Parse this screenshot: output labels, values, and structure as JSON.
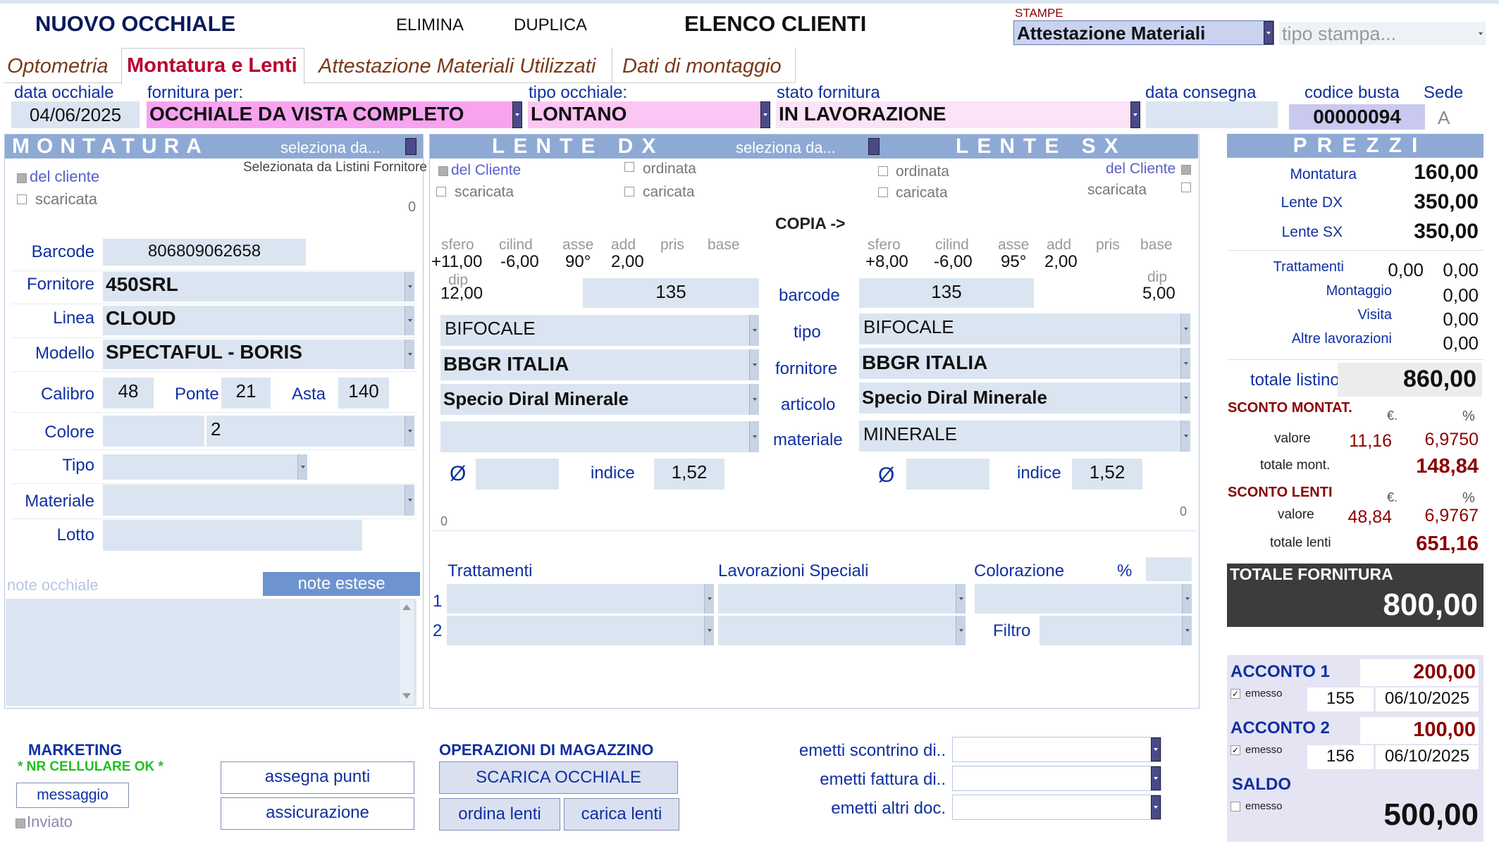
{
  "header": {
    "title": "NUOVO OCCHIALE",
    "elimina": "ELIMINA",
    "duplica": "DUPLICA",
    "elenco": "ELENCO CLIENTI",
    "stampe_label": "STAMPE",
    "stampe_value": "Attestazione Materiali",
    "tipo_stampa_placeholder": "tipo stampa..."
  },
  "tabs": [
    {
      "label": "Optometria"
    },
    {
      "label": "Montatura e Lenti"
    },
    {
      "label": "Attestazione Materiali Utilizzati"
    },
    {
      "label": "Dati di montaggio"
    }
  ],
  "info": {
    "data_occhiale_label": "data occhiale",
    "data_occhiale": "04/06/2025",
    "fornitura_label": "fornitura per:",
    "fornitura": "OCCHIALE DA VISTA COMPLETO",
    "tipo_label": "tipo occhiale:",
    "tipo": "LONTANO",
    "stato_label": "stato fornitura",
    "stato": "IN LAVORAZIONE",
    "consegna_label": "data consegna",
    "busta_label": "codice busta",
    "busta": "00000094",
    "sede_label": "Sede",
    "sede": "A"
  },
  "montatura": {
    "title": "MONTATURA",
    "seleziona": "seleziona da...",
    "del_cliente": "del cliente",
    "scaricata": "scaricata",
    "selezionata": "Selezionata da Listini Fornitore",
    "zero": "0",
    "barcode_label": "Barcode",
    "barcode": "806809062658",
    "fornitore_label": "Fornitore",
    "fornitore": "450SRL",
    "linea_label": "Linea",
    "linea": "CLOUD",
    "modello_label": "Modello",
    "modello": "SPECTAFUL - BORIS",
    "calibro_label": "Calibro",
    "calibro": "48",
    "ponte_label": "Ponte",
    "ponte": "21",
    "asta_label": "Asta",
    "asta": "140",
    "colore_label": "Colore",
    "colore": "2",
    "tipo_label": "Tipo",
    "materiale_label": "Materiale",
    "lotto_label": "Lotto",
    "note_placeholder": "note occhiale",
    "note_estese": "note estese"
  },
  "lenti": {
    "dx_title": "LENTE DX",
    "sx_title": "LENTE SX",
    "seleziona": "seleziona da...",
    "del_cliente": "del Cliente",
    "scaricata": "scaricata",
    "ordinata": "ordinata",
    "caricata": "caricata",
    "copia": "COPIA ->",
    "col_sfero": "sfero",
    "col_cilind": "cilind",
    "col_asse": "asse",
    "col_add": "add",
    "col_pris": "pris",
    "col_base": "base",
    "col_dip": "dip",
    "dx": {
      "sfero": "+11,00",
      "cilind": "-6,00",
      "asse": "90°",
      "add": "2,00",
      "dip": "12,00",
      "barcode": "135",
      "tipo": "BIFOCALE",
      "fornitore": "BBGR ITALIA",
      "articolo": "Specio Diral Minerale",
      "materiale": "",
      "indice": "1,52",
      "zero": "0"
    },
    "sx": {
      "sfero": "+8,00",
      "cilind": "-6,00",
      "asse": "95°",
      "add": "2,00",
      "dip": "5,00",
      "barcode": "135",
      "tipo": "BIFOCALE",
      "fornitore": "BBGR ITALIA",
      "articolo": "Specio Diral Minerale",
      "materiale": "MINERALE",
      "indice": "1,52",
      "zero": "0"
    },
    "mid_barcode": "barcode",
    "mid_tipo": "tipo",
    "mid_fornitore": "fornitore",
    "mid_articolo": "articolo",
    "mid_materiale": "materiale",
    "diam": "Ø",
    "indice_label": "indice",
    "trattamenti": "Trattamenti",
    "lavorazioni": "Lavorazioni Speciali",
    "colorazione": "Colorazione",
    "perc": "%",
    "row1": "1",
    "row2": "2",
    "filtro": "Filtro"
  },
  "prezzi": {
    "title": "PREZZI",
    "montatura_label": "Montatura",
    "montatura": "160,00",
    "lente_dx_label": "Lente DX",
    "lente_dx": "350,00",
    "lente_sx_label": "Lente SX",
    "lente_sx": "350,00",
    "trattamenti_label": "Trattamenti",
    "trattamenti_a": "0,00",
    "trattamenti_b": "0,00",
    "montaggio_label": "Montaggio",
    "montaggio": "0,00",
    "visita_label": "Visita",
    "visita": "0,00",
    "altre_label": "Altre lavorazioni",
    "altre": "0,00",
    "totale_listino_label": "totale listino",
    "totale_listino": "860,00",
    "sconto_mont_label": "SCONTO MONTAT.",
    "euro": "€.",
    "perc": "%",
    "valore_label": "valore",
    "sconto_mont_val": "11,16",
    "sconto_mont_perc": "6,9750",
    "totale_mont_label": "totale mont.",
    "totale_mont": "148,84",
    "sconto_lenti_label": "SCONTO LENTI",
    "sconto_lenti_val": "48,84",
    "sconto_lenti_perc": "6,9767",
    "totale_lenti_label": "totale lenti",
    "totale_lenti": "651,16",
    "totale_fornitura_label": "TOTALE FORNITURA",
    "totale_fornitura": "800,00"
  },
  "acconti": {
    "acconto1_label": "ACCONTO 1",
    "acconto1": "200,00",
    "emesso": "emesso",
    "acc1_num": "155",
    "acc1_data": "06/10/2025",
    "acconto2_label": "ACCONTO 2",
    "acconto2": "100,00",
    "acc2_num": "156",
    "acc2_data": "06/10/2025",
    "saldo_label": "SALDO",
    "saldo": "500,00"
  },
  "bottom": {
    "marketing": "MARKETING",
    "nr_cell": "* NR CELLULARE OK *",
    "messaggio": "messaggio",
    "inviato": "Inviato",
    "assegna_punti": "assegna punti",
    "assicurazione": "assicurazione",
    "magazzino": "OPERAZIONI DI MAGAZZINO",
    "scarica": "SCARICA OCCHIALE",
    "ordina": "ordina lenti",
    "carica": "carica lenti",
    "scontrino": "emetti scontrino di..",
    "fattura": "emetti fattura di..",
    "altri_doc": "emetti altri doc."
  }
}
